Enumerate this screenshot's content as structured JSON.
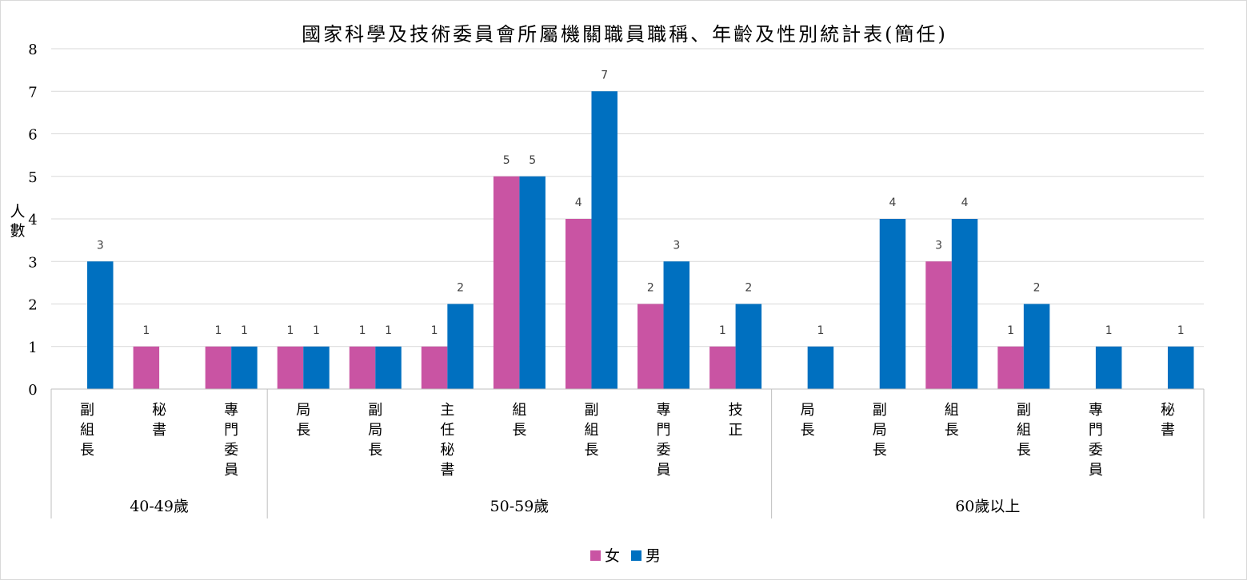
{
  "chart_data": {
    "type": "bar",
    "title": "國家科學及技術委員會所屬機關職員職稱、年齡及性別統計表(簡任)",
    "ylabel": "人數",
    "xlabel": "",
    "ylim": [
      0,
      8
    ],
    "yticks": [
      "0",
      "1",
      "2",
      "3",
      "4",
      "5",
      "6",
      "7",
      "8"
    ],
    "grid": true,
    "legend_position": "bottom",
    "groups": [
      {
        "label": "40-49歲",
        "categories": [
          "副組長",
          "秘書",
          "專門委員"
        ]
      },
      {
        "label": "50-59歲",
        "categories": [
          "局長",
          "副局長",
          "主任秘書",
          "組長",
          "副組長",
          "專門委員",
          "技正"
        ]
      },
      {
        "label": "60歲以上",
        "categories": [
          "局長",
          "副局長",
          "組長",
          "副組長",
          "專門委員",
          "秘書"
        ]
      }
    ],
    "series": [
      {
        "name": "女",
        "color": "#c954a3",
        "values": [
          null,
          1,
          1,
          1,
          1,
          1,
          5,
          4,
          2,
          1,
          null,
          null,
          3,
          1,
          null,
          null
        ]
      },
      {
        "name": "男",
        "color": "#0070c0",
        "values": [
          3,
          null,
          1,
          1,
          1,
          2,
          5,
          7,
          3,
          2,
          1,
          4,
          4,
          2,
          1,
          1
        ]
      }
    ],
    "colors": {
      "grid": "#d9d9d9",
      "axis": "#bfbfbf"
    }
  }
}
